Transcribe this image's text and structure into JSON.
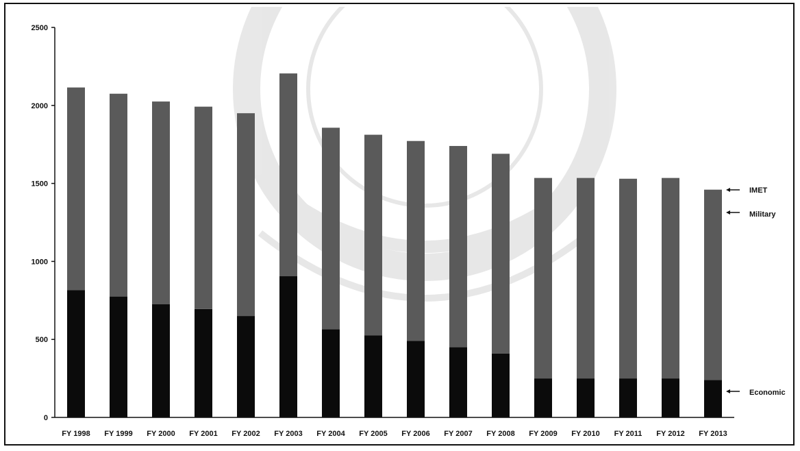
{
  "chart_data": {
    "type": "bar",
    "stacked": true,
    "categories": [
      "FY 1998",
      "FY 1999",
      "FY 2000",
      "FY 2001",
      "FY 2002",
      "FY 2003",
      "FY 2004",
      "FY 2005",
      "FY 2006",
      "FY 2007",
      "FY 2008",
      "FY 2009",
      "FY 2010",
      "FY 2011",
      "FY 2012",
      "FY 2013"
    ],
    "series": [
      {
        "name": "Economic",
        "color": "#0b0b0b",
        "values": [
          815,
          775,
          725,
          695,
          650,
          905,
          565,
          525,
          490,
          450,
          410,
          250,
          250,
          250,
          250,
          240
        ]
      },
      {
        "name": "Military",
        "color": "#5a5a5a",
        "values": [
          1300,
          1300,
          1300,
          1297,
          1300,
          1300,
          1292,
          1287,
          1282,
          1290,
          1280,
          1285,
          1285,
          1280,
          1285,
          1220
        ]
      },
      {
        "name": "IMET",
        "color": "#8a8a8a",
        "values": [
          0,
          0,
          0,
          0,
          0,
          0,
          0,
          0,
          0,
          0,
          0,
          0,
          0,
          0,
          0,
          0
        ]
      }
    ],
    "title": "",
    "xlabel": "",
    "ylabel": "",
    "ylim": [
      0,
      2500
    ],
    "yticks": [
      "0",
      "500",
      "1000",
      "1500",
      "2000",
      "2500"
    ],
    "grid": false,
    "legend": "right",
    "legend_labels": {
      "imet": "IMET",
      "military": "Military",
      "economic": "Economic"
    }
  }
}
